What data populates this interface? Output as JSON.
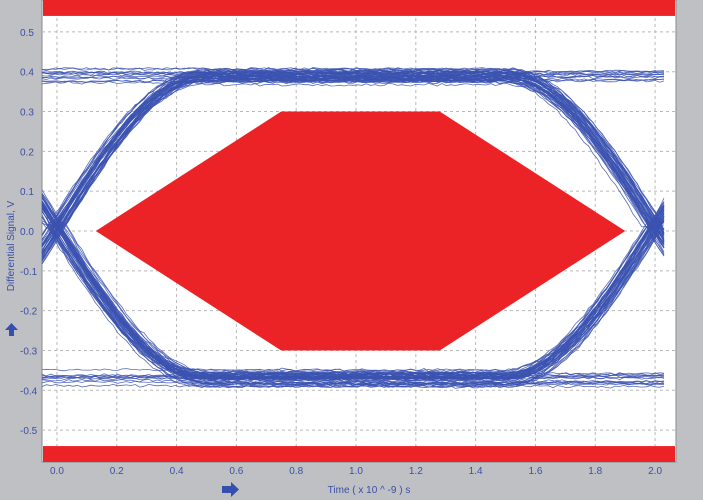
{
  "chart_data": {
    "type": "line",
    "title": "",
    "xlabel": "Time  ( x 10 ^ -9 ) s",
    "ylabel": "Differential Signal, V",
    "xlim": [
      -0.05,
      2.07
    ],
    "ylim": [
      -0.58,
      0.58
    ],
    "x_ticks": [
      0.0,
      0.2,
      0.4,
      0.6,
      0.8,
      1.0,
      1.2,
      1.4,
      1.6,
      1.8,
      2.0
    ],
    "x_tick_labels": [
      "0.0",
      "0.2",
      "0.4",
      "0.6",
      "0.8",
      "1.0",
      "1.2",
      "1.4",
      "1.6",
      "1.8",
      "2.0"
    ],
    "y_ticks": [
      0.5,
      0.4,
      0.3,
      0.2,
      0.1,
      0.0,
      -0.1,
      -0.2,
      -0.3,
      -0.4,
      -0.5
    ],
    "y_tick_labels": [
      "0.5",
      "0.4",
      "0.3",
      "0.2",
      "0.1",
      "0.0",
      "-0.1",
      "-0.2",
      "-0.3",
      "-0.4",
      "-0.5"
    ],
    "grid": true,
    "eye_mask": {
      "polygon": [
        [
          0.13,
          0.0
        ],
        [
          0.75,
          0.3
        ],
        [
          1.28,
          0.3
        ],
        [
          1.9,
          0.0
        ],
        [
          1.28,
          -0.3
        ],
        [
          0.75,
          -0.3
        ]
      ],
      "upper_limit": 0.54,
      "lower_limit": -0.54
    },
    "eye_traces": {
      "high_level": 0.39,
      "low_level": -0.37,
      "crossing_times": [
        0.0,
        2.0
      ],
      "x_range": [
        -0.05,
        2.03
      ]
    },
    "colors": {
      "trace": "#3b52b0",
      "mask": "#ec2326",
      "plot_background": "#ffffff",
      "frame_background": "#bfc0c4",
      "grid": "#b8b8b8",
      "axis_text": "#3b4fa6"
    }
  }
}
